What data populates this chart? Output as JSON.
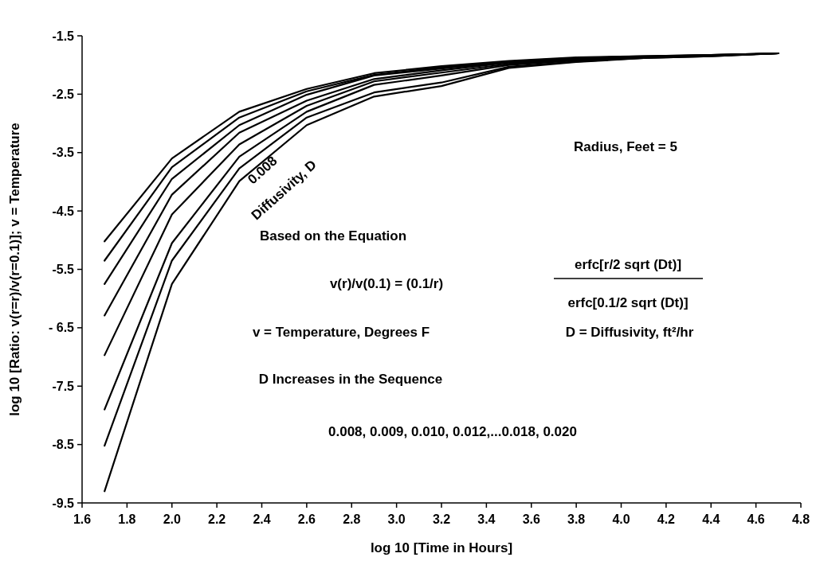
{
  "chart_data": {
    "type": "line",
    "xlabel": "log 10 [Time in Hours]",
    "ylabel": "log 10 [Ratio: v(r=r)/v(r=0.1)]; v = Temperature",
    "x": [
      1.7,
      2.0,
      2.3,
      2.6,
      2.9,
      3.2,
      3.5,
      3.8,
      4.1,
      4.4,
      4.7
    ],
    "series": [
      {
        "color": "#000000",
        "values": [
          -5.02,
          -3.6,
          -2.8,
          -2.41,
          -2.14,
          -2.02,
          -1.93,
          -1.87,
          -1.85,
          -1.83,
          -1.8
        ]
      },
      {
        "color": "#000000",
        "values": [
          -5.35,
          -3.75,
          -2.9,
          -2.45,
          -2.17,
          -2.04,
          -1.94,
          -1.88,
          -1.85,
          -1.83,
          -1.8
        ]
      },
      {
        "color": "#000000",
        "values": [
          -5.75,
          -3.95,
          -3.03,
          -2.51,
          -2.18,
          -2.06,
          -1.95,
          -1.89,
          -1.86,
          -1.83,
          -1.8
        ]
      },
      {
        "color": "#000000",
        "values": [
          -6.29,
          -4.22,
          -3.16,
          -2.61,
          -2.24,
          -2.09,
          -1.96,
          -1.9,
          -1.86,
          -1.84,
          -1.8
        ]
      },
      {
        "color": "#000000",
        "values": [
          -6.97,
          -4.56,
          -3.36,
          -2.7,
          -2.28,
          -2.13,
          -1.98,
          -1.91,
          -1.87,
          -1.84,
          -1.8
        ]
      },
      {
        "color": "#000000",
        "values": [
          -7.9,
          -5.05,
          -3.57,
          -2.8,
          -2.34,
          -2.18,
          -2.0,
          -1.92,
          -1.87,
          -1.84,
          -1.8
        ]
      },
      {
        "color": "#000000",
        "values": [
          -8.52,
          -5.35,
          -3.77,
          -2.9,
          -2.47,
          -2.3,
          -2.03,
          -1.94,
          -1.88,
          -1.85,
          -1.8
        ]
      },
      {
        "color": "#000000",
        "values": [
          -9.3,
          -5.75,
          -3.99,
          -3.03,
          -2.54,
          -2.36,
          -2.05,
          -1.95,
          -1.88,
          -1.85,
          -1.8
        ]
      }
    ],
    "xlim": [
      1.6,
      4.8
    ],
    "xticks": [
      {
        "value": 1.6,
        "label": "1.6"
      },
      {
        "value": 1.8,
        "label": "1.8"
      },
      {
        "value": 2.0,
        "label": "2.0"
      },
      {
        "value": 2.2,
        "label": "2.2"
      },
      {
        "value": 2.4,
        "label": "2.4"
      },
      {
        "value": 2.6,
        "label": "2.6"
      },
      {
        "value": 2.8,
        "label": "2.8"
      },
      {
        "value": 3.0,
        "label": "3.0"
      },
      {
        "value": 3.2,
        "label": "3.2"
      },
      {
        "value": 3.4,
        "label": "3.4"
      },
      {
        "value": 3.6,
        "label": "3.6"
      },
      {
        "value": 3.8,
        "label": "3.8"
      },
      {
        "value": 4.0,
        "label": "4.0"
      },
      {
        "value": 4.2,
        "label": "4.2"
      },
      {
        "value": 4.4,
        "label": "4.4"
      },
      {
        "value": 4.6,
        "label": "4.6"
      },
      {
        "value": 4.8,
        "label": "4.8"
      }
    ],
    "ylim": [
      -9.5,
      -1.5
    ],
    "yticks": [
      -1.5,
      -2.5,
      -3.5,
      -4.5,
      -5.5,
      {
        "value": -6.5,
        "label": "- 6.5"
      },
      -7.5,
      -8.5,
      -9.5
    ],
    "marker": "none",
    "line_style": "solid",
    "annotations": [
      "0.008",
      "Diffusivity, D",
      "Radius, Feet = 5",
      "Based on the Equation",
      "v(r)/v(0.1) = (0.1/r)",
      "erfc[r/2 sqrt (Dt)]",
      "erfc[0.1/2 sqrt (Dt)]",
      "v = Temperature, Degrees F",
      "D = Diffusivity, ft²/hr",
      "D Increases in the Sequence",
      "0.008, 0.009, 0.010, 0.012,...0.018, 0.020"
    ]
  }
}
